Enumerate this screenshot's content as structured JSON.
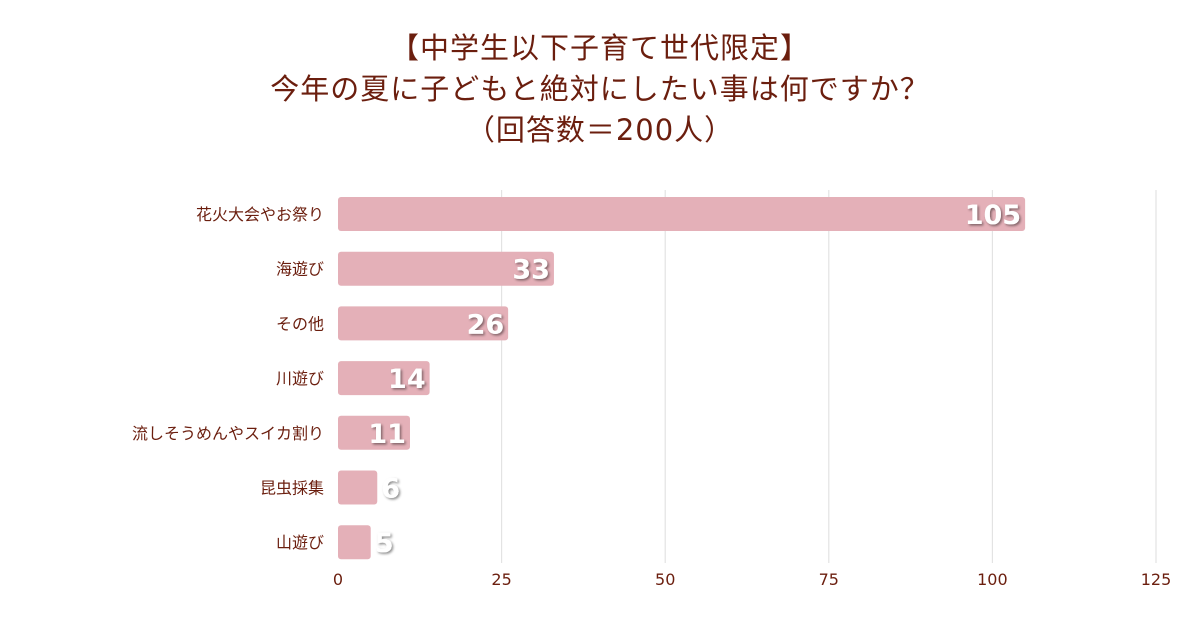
{
  "title": {
    "line1": "【中学生以下子育て世代限定】",
    "line2": "今年の夏に子どもと絶対にしたい事は何ですか？",
    "line3": "（回答数＝200人）"
  },
  "colors": {
    "bar": "#e4b0b8",
    "text": "#6b1e0e",
    "grid": "#e3e3e3"
  },
  "chart_data": {
    "type": "bar",
    "orientation": "horizontal",
    "categories": [
      "花火大会やお祭り",
      "海遊び",
      "その他",
      "川遊び",
      "流しそうめんやスイカ割り",
      "昆虫採集",
      "山遊び"
    ],
    "values": [
      105,
      33,
      26,
      14,
      11,
      6,
      5
    ],
    "xlim": [
      0,
      125
    ],
    "xticks": [
      0,
      25,
      50,
      75,
      100,
      125
    ],
    "grid": "vertical"
  }
}
